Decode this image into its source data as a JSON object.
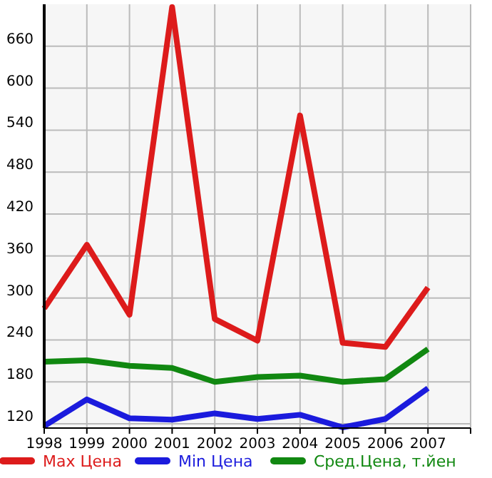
{
  "chart_data": {
    "type": "line",
    "x": [
      1998,
      1999,
      2000,
      2001,
      2002,
      2003,
      2004,
      2005,
      2006,
      2007
    ],
    "series": [
      {
        "name": "Max Цена",
        "color": "#dd1b1b",
        "values": [
          285,
          376,
          276,
          716,
          270,
          239,
          561,
          236,
          230,
          315
        ]
      },
      {
        "name": "Min Цена",
        "color": "#1b1bdd",
        "values": [
          117,
          155,
          128,
          126,
          135,
          127,
          133,
          115,
          127,
          171
        ]
      },
      {
        "name": "Сред.Цена, т.йен",
        "color": "#118811",
        "values": [
          209,
          211,
          203,
          200,
          180,
          187,
          189,
          180,
          184,
          227
        ]
      }
    ],
    "xlim": [
      1998,
      2008
    ],
    "xticks": [
      1998,
      1999,
      2000,
      2001,
      2002,
      2003,
      2004,
      2005,
      2006,
      2007
    ],
    "ylim": [
      114,
      720
    ],
    "yticks": [
      120,
      180,
      240,
      300,
      360,
      420,
      480,
      540,
      600,
      660
    ],
    "grid": true,
    "legend": "bottom",
    "marker": "none",
    "line_style": "solid"
  }
}
